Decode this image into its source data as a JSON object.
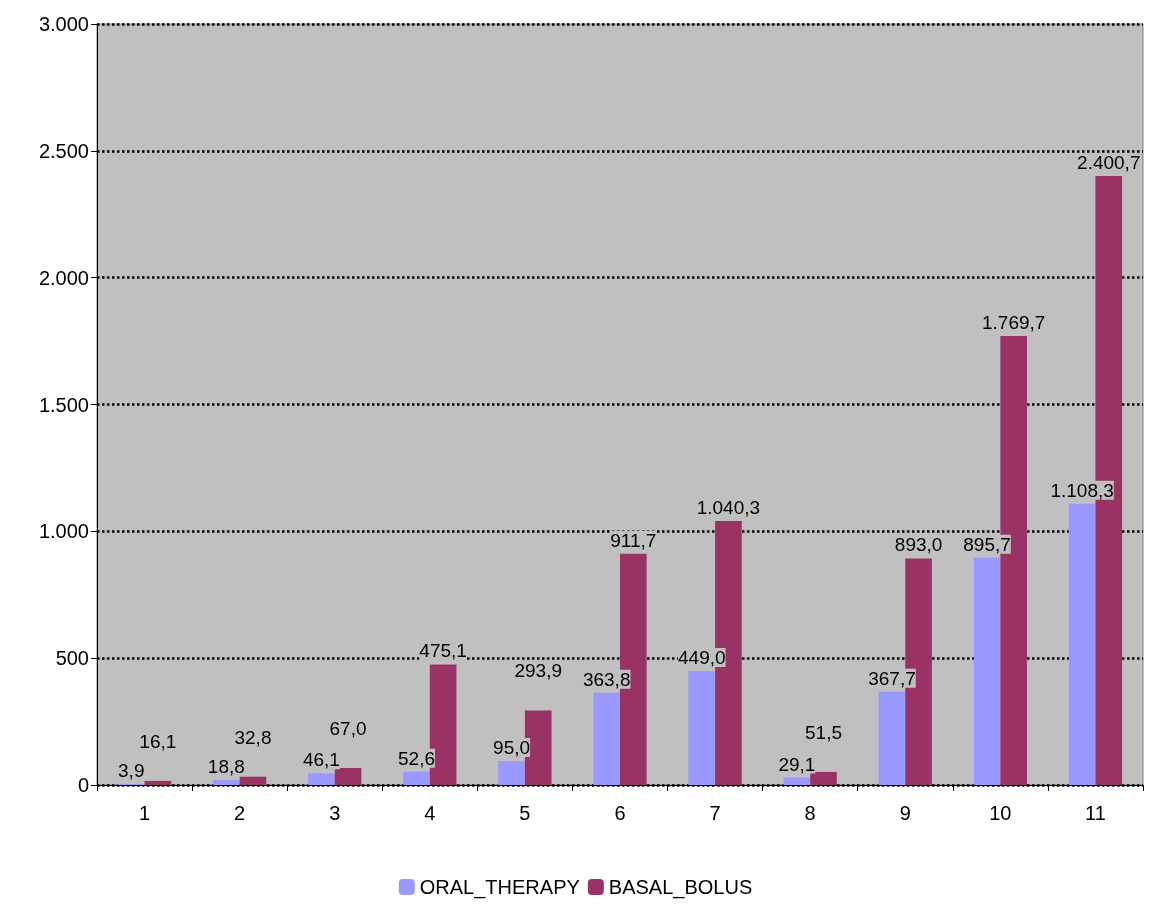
{
  "chart_data": {
    "type": "bar",
    "categories": [
      "1",
      "2",
      "3",
      "4",
      "5",
      "6",
      "7",
      "8",
      "9",
      "10",
      "11"
    ],
    "series": [
      {
        "name": "ORAL_THERAPY",
        "color": "#9999ff",
        "values": [
          3.9,
          18.8,
          46.1,
          52.6,
          95.0,
          363.8,
          449.0,
          29.1,
          367.7,
          895.7,
          1108.3
        ],
        "value_labels": [
          "3,9",
          "18,8",
          "46,1",
          "52,6",
          "95,0",
          "363,8",
          "449,0",
          "29,1",
          "367,7",
          "895,7",
          "1.108,3"
        ]
      },
      {
        "name": "BASAL_BOLUS",
        "color": "#993366",
        "values": [
          16.1,
          32.8,
          67.0,
          475.1,
          293.9,
          911.7,
          1040.3,
          51.5,
          893.0,
          1769.7,
          2400.7
        ],
        "value_labels": [
          "16,1",
          "32,8",
          "67,0",
          "475,1",
          "293,9",
          "911,7",
          "1.040,3",
          "51,5",
          "893,0",
          "1.769,7",
          "2.400,7"
        ]
      }
    ],
    "ylim": [
      0,
      3000
    ],
    "yticks": [
      {
        "value": 0,
        "label": "0"
      },
      {
        "value": 500,
        "label": "500"
      },
      {
        "value": 1000,
        "label": "1.000"
      },
      {
        "value": 1500,
        "label": "1.500"
      },
      {
        "value": 2000,
        "label": "2.000"
      },
      {
        "value": 2500,
        "label": "2.500"
      },
      {
        "value": 3000,
        "label": "3.000"
      }
    ],
    "grid": "y",
    "legend": "bottom"
  }
}
